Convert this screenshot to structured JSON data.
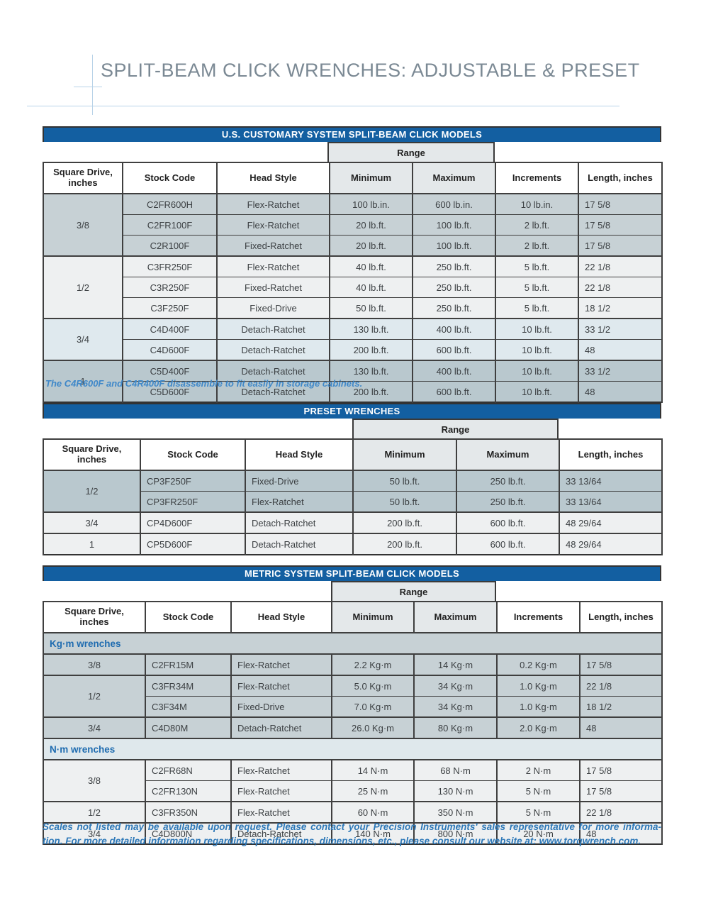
{
  "page": {
    "title": "SPLIT-BEAM CLICK WRENCHES: ADJUSTABLE & PRESET"
  },
  "colors": {
    "header_bar_blue": "#135fa1",
    "title_gray": "#7b8994",
    "accent_line_blue": "#b9d3e8",
    "note_blue": "#3f88c9",
    "footer_blue": "#2d78b8",
    "section_label_blue": "#1f6cb0",
    "row_shade_dark": "#c7d1d5",
    "row_shade_light": "#eef0f1",
    "row_shade_blue": "#dfe9ee",
    "row_shade_darker": "#b9c8ce",
    "range_header_gray": "#e4e8ea"
  },
  "tables": [
    {
      "bar_title": "U.S. CUSTOMARY SYSTEM SPLIT-BEAM CLICK MODELS",
      "range_label": "Range",
      "col_headers": [
        "Square Drive, inches",
        "Stock Code",
        "Head Style",
        "Minimum",
        "Maximum",
        "Increments",
        "Length, inches"
      ],
      "sections": [
        {
          "label": null,
          "groups": [
            {
              "drive": "3/8",
              "shade": "s1",
              "rows": [
                [
                  "C2FR600H",
                  "Flex-Ratchet",
                  "100 lb.in.",
                  "600 lb.in.",
                  "10 lb.in.",
                  "17 5/8"
                ],
                [
                  "C2FR100F",
                  "Flex-Ratchet",
                  "20 lb.ft.",
                  "100 lb.ft.",
                  "2 lb.ft.",
                  "17 5/8"
                ],
                [
                  "C2R100F",
                  "Fixed-Ratchet",
                  "20 lb.ft.",
                  "100 lb.ft.",
                  "2 lb.ft.",
                  "17 5/8"
                ]
              ]
            },
            {
              "drive": "1/2",
              "shade": "s2",
              "rows": [
                [
                  "C3FR250F",
                  "Flex-Ratchet",
                  "40 lb.ft.",
                  "250 lb.ft.",
                  "5 lb.ft.",
                  "22 1/8"
                ],
                [
                  "C3R250F",
                  "Fixed-Ratchet",
                  "40 lb.ft.",
                  "250 lb.ft.",
                  "5 lb.ft.",
                  "22 1/8"
                ],
                [
                  "C3F250F",
                  "Fixed-Drive",
                  "50 lb.ft.",
                  "250 lb.ft.",
                  "5 lb.ft.",
                  "18 1/2"
                ]
              ]
            },
            {
              "drive": "3/4",
              "shade": "s3",
              "rows": [
                [
                  "C4D400F",
                  "Detach-Ratchet",
                  "130 lb.ft.",
                  "400 lb.ft.",
                  "10 lb.ft.",
                  "33 1/2"
                ],
                [
                  "C4D600F",
                  "Detach-Ratchet",
                  "200 lb.ft.",
                  "600 lb.ft.",
                  "10 lb.ft.",
                  "48"
                ]
              ]
            },
            {
              "drive": "1",
              "shade": "s4",
              "rows": [
                [
                  "C5D400F",
                  "Detach-Ratchet",
                  "130 lb.ft.",
                  "400 lb.ft.",
                  "10 lb.ft.",
                  "33 1/2"
                ],
                [
                  "C5D600F",
                  "Detach-Ratchet",
                  "200 lb.ft.",
                  "600 lb.ft.",
                  "10 lb.ft.",
                  "48"
                ]
              ]
            }
          ]
        }
      ],
      "note": "The C4R600F and C4R400F disassemble to fit easily in storage cabinets."
    },
    {
      "bar_title": "PRESET WRENCHES",
      "range_label": "Range",
      "col_headers": [
        "Square Drive, inches",
        "Stock Code",
        "Head Style",
        "Minimum",
        "Maximum",
        "Length, inches"
      ],
      "sections": [
        {
          "label": null,
          "groups": [
            {
              "drive": "1/2",
              "shade": "s4",
              "rows": [
                [
                  "CP3F250F",
                  "Fixed-Drive",
                  "50 lb.ft.",
                  "250 lb.ft.",
                  "33 13/64"
                ],
                [
                  "CP3FR250F",
                  "Flex-Ratchet",
                  "50 lb.ft.",
                  "250 lb.ft.",
                  "33 13/64"
                ]
              ]
            },
            {
              "drive": "3/4",
              "shade": "s2",
              "rows": [
                [
                  "CP4D600F",
                  "Detach-Ratchet",
                  "200 lb.ft.",
                  "600 lb.ft.",
                  "48 29/64"
                ]
              ]
            },
            {
              "drive": "1",
              "shade": "s2",
              "rows": [
                [
                  "CP5D600F",
                  "Detach-Ratchet",
                  "200 lb.ft.",
                  "600 lb.ft.",
                  "48 29/64"
                ]
              ]
            }
          ]
        }
      ]
    },
    {
      "bar_title": "METRIC SYSTEM SPLIT-BEAM CLICK MODELS",
      "range_label": "Range",
      "col_headers": [
        "Square Drive, inches",
        "Stock Code",
        "Head Style",
        "Minimum",
        "Maximum",
        "Increments",
        "Length, inches"
      ],
      "sections": [
        {
          "label": "Kg·m wrenches",
          "label_shade": "s1",
          "groups": [
            {
              "drive": "3/8",
              "shade": "s1",
              "rows": [
                [
                  "C2FR15M",
                  "Flex-Ratchet",
                  "2.2 Kg·m",
                  "14 Kg·m",
                  "0.2 Kg·m",
                  "17 5/8"
                ]
              ]
            },
            {
              "drive": "1/2",
              "shade": "s1",
              "rows": [
                [
                  "C3FR34M",
                  "Flex-Ratchet",
                  "5.0 Kg·m",
                  "34 Kg·m",
                  "1.0 Kg·m",
                  "22 1/8"
                ],
                [
                  "C3F34M",
                  "Fixed-Drive",
                  "7.0 Kg·m",
                  "34 Kg·m",
                  "1.0 Kg·m",
                  "18 1/2"
                ]
              ]
            },
            {
              "drive": "3/4",
              "shade": "s1",
              "rows": [
                [
                  "C4D80M",
                  "Detach-Ratchet",
                  "26.0 Kg·m",
                  "80 Kg·m",
                  "2.0 Kg·m",
                  "48"
                ]
              ]
            }
          ]
        },
        {
          "label": "N·m wrenches",
          "label_shade": "s5",
          "groups": [
            {
              "drive": "3/8",
              "shade": "s2",
              "rows": [
                [
                  "C2FR68N",
                  "Flex-Ratchet",
                  "14 N·m",
                  "68 N·m",
                  "2 N·m",
                  "17 5/8"
                ],
                [
                  "C2FR130N",
                  "Flex-Ratchet",
                  "25 N·m",
                  "130 N·m",
                  "5 N·m",
                  "17 5/8"
                ]
              ]
            },
            {
              "drive": "1/2",
              "shade": "s2",
              "rows": [
                [
                  "C3FR350N",
                  "Flex-Ratchet",
                  "60 N·m",
                  "350 N·m",
                  "5 N·m",
                  "22 1/8"
                ]
              ]
            },
            {
              "drive": "3/4",
              "shade": "s2",
              "rows": [
                [
                  "C4D800N",
                  "Detach-Ratchet",
                  "140 N·m",
                  "800 N·m",
                  "20 N·m",
                  "48"
                ]
              ]
            }
          ]
        }
      ]
    }
  ],
  "footer": {
    "line1": "Scales not listed may be available upon request. Please contact your Precision Instruments' sales representative for more informa-",
    "line2_pre": "tion. For more detailed information regarding specifications, dimensions, etc., please consult our website at: ",
    "url": "www.torqwrench.com."
  }
}
